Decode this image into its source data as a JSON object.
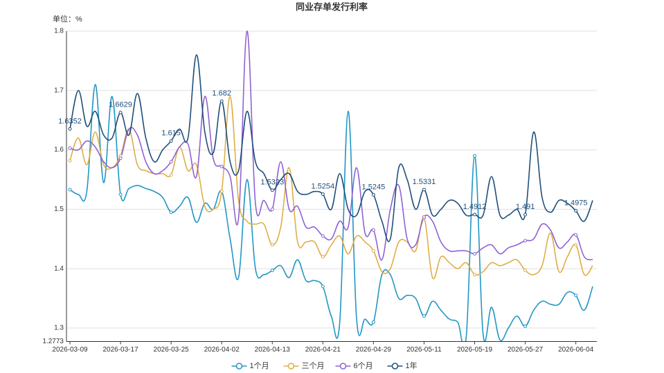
{
  "chart_data": {
    "type": "line",
    "title": "同业存单发行利率",
    "y_axis_label": "单位：%",
    "categories": [
      "2026-03-09",
      null,
      null,
      null,
      null,
      null,
      "2026-03-17",
      null,
      null,
      null,
      null,
      null,
      "2026-03-25",
      null,
      null,
      null,
      null,
      null,
      "2026-04-02",
      null,
      null,
      null,
      null,
      null,
      "2026-04-13",
      null,
      null,
      null,
      null,
      null,
      "2026-04-21",
      null,
      null,
      null,
      null,
      null,
      "2026-04-29",
      null,
      null,
      null,
      null,
      null,
      "2026-05-11",
      null,
      null,
      null,
      null,
      null,
      "2026-05-19",
      null,
      null,
      null,
      null,
      null,
      "2026-05-27",
      null,
      null,
      null,
      null,
      null,
      "2026-06-04",
      null,
      null
    ],
    "ylim": [
      1.2773,
      1.8
    ],
    "yticks": [
      1.2773,
      1.3,
      1.4,
      1.5,
      1.6,
      1.7,
      1.8
    ],
    "grid": true,
    "legend": "bottom",
    "series": [
      {
        "name": "1个月",
        "color": "#2196c4",
        "values": [
          1.533,
          1.525,
          1.53,
          1.71,
          1.545,
          1.69,
          1.525,
          1.535,
          1.54,
          1.535,
          1.53,
          1.52,
          1.495,
          1.505,
          1.52,
          1.478,
          1.51,
          1.5,
          1.53,
          1.45,
          1.385,
          1.55,
          1.4,
          1.39,
          1.397,
          1.405,
          1.385,
          1.415,
          1.38,
          1.38,
          1.37,
          1.32,
          1.31,
          1.665,
          1.315,
          1.315,
          1.31,
          1.39,
          1.39,
          1.35,
          1.355,
          1.35,
          1.32,
          1.345,
          1.33,
          1.315,
          1.31,
          1.285,
          1.59,
          1.29,
          1.335,
          1.28,
          1.3,
          1.32,
          1.303,
          1.33,
          1.345,
          1.34,
          1.34,
          1.36,
          1.355,
          1.33,
          1.37
        ]
      },
      {
        "name": "三个月",
        "color": "#e0ad45",
        "values": [
          1.582,
          1.62,
          1.575,
          1.63,
          1.575,
          1.57,
          1.59,
          1.635,
          1.575,
          1.565,
          1.56,
          1.56,
          1.558,
          1.605,
          1.565,
          1.575,
          1.505,
          1.5,
          1.53,
          1.69,
          1.515,
          1.48,
          1.475,
          1.475,
          1.44,
          1.47,
          1.57,
          1.445,
          1.445,
          1.445,
          1.42,
          1.44,
          1.455,
          1.425,
          1.455,
          1.445,
          1.43,
          1.395,
          1.4,
          1.445,
          1.445,
          1.43,
          1.485,
          1.385,
          1.42,
          1.41,
          1.4,
          1.41,
          1.39,
          1.395,
          1.41,
          1.405,
          1.41,
          1.415,
          1.397,
          1.39,
          1.405,
          1.46,
          1.395,
          1.42,
          1.44,
          1.39,
          1.405
        ]
      },
      {
        "name": "6个月",
        "color": "#8e62d4",
        "values": [
          1.603,
          1.6,
          1.615,
          1.605,
          1.58,
          1.57,
          1.586,
          1.635,
          1.625,
          1.58,
          1.56,
          1.565,
          1.58,
          1.605,
          1.61,
          1.555,
          1.69,
          1.585,
          1.572,
          1.555,
          1.485,
          1.8,
          1.51,
          1.515,
          1.5,
          1.58,
          1.5,
          1.505,
          1.47,
          1.47,
          1.455,
          1.45,
          1.48,
          1.47,
          1.57,
          1.46,
          1.465,
          1.415,
          1.5,
          1.54,
          1.45,
          1.44,
          1.487,
          1.48,
          1.445,
          1.43,
          1.43,
          1.43,
          1.425,
          1.435,
          1.44,
          1.425,
          1.435,
          1.44,
          1.447,
          1.45,
          1.475,
          1.465,
          1.435,
          1.445,
          1.457,
          1.42,
          1.415
        ]
      },
      {
        "name": "1年",
        "color": "#1f4e79",
        "values": [
          1.6352,
          1.7,
          1.64,
          1.665,
          1.625,
          1.62,
          1.6629,
          1.625,
          1.695,
          1.62,
          1.58,
          1.6,
          1.615,
          1.635,
          1.62,
          1.76,
          1.63,
          1.595,
          1.682,
          1.58,
          1.565,
          1.665,
          1.58,
          1.56,
          1.5323,
          1.55,
          1.56,
          1.53,
          1.525,
          1.53,
          1.5254,
          1.5,
          1.56,
          1.5,
          1.49,
          1.53,
          1.5245,
          1.48,
          1.45,
          1.57,
          1.55,
          1.5,
          1.5331,
          1.49,
          1.5,
          1.515,
          1.51,
          1.49,
          1.4912,
          1.49,
          1.555,
          1.49,
          1.49,
          1.5,
          1.491,
          1.63,
          1.52,
          1.495,
          1.515,
          1.51,
          1.4975,
          1.48,
          1.515
        ],
        "value_labels": [
          "1.6352",
          null,
          null,
          null,
          null,
          null,
          "1.6629",
          null,
          null,
          null,
          null,
          null,
          "1.615",
          null,
          null,
          null,
          null,
          null,
          "1.682",
          null,
          null,
          null,
          null,
          null,
          "1.5323",
          null,
          null,
          null,
          null,
          null,
          "1.5254",
          null,
          null,
          null,
          null,
          null,
          "1.5245",
          null,
          null,
          null,
          null,
          null,
          "1.5331",
          null,
          null,
          null,
          null,
          null,
          "1.4912",
          null,
          null,
          null,
          null,
          null,
          "1.491",
          null,
          null,
          null,
          null,
          null,
          "1.4975",
          null,
          null
        ]
      }
    ]
  }
}
